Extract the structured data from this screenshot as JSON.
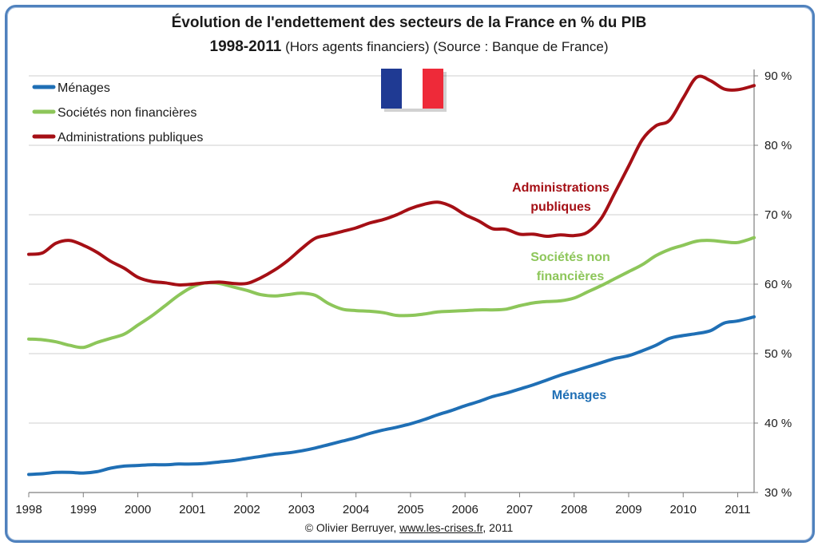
{
  "header": {
    "title": "Évolution de l'endettement des secteurs de la France  en % du PIB",
    "years": "1998-2011",
    "subtitle_rest": " (Hors agents financiers) (Source : Banque de France)"
  },
  "footer": {
    "copyright": "© Olivier Berruyer, ",
    "link": "www.les-crises.fr",
    "year": ",  2011"
  },
  "flag": {
    "colors": [
      "#1f3a93",
      "#ffffff",
      "#ee2a39"
    ]
  },
  "colors": {
    "grid": "#cfcfcf",
    "axis": "#7f7f7f",
    "frame": "#4f81bd"
  },
  "chart_data": {
    "type": "line",
    "title": "Évolution de l'endettement des secteurs de la France  en % du PIB",
    "xlim": [
      1998,
      2011.3
    ],
    "ylim": [
      30,
      90
    ],
    "x_ticks": [
      1998,
      1999,
      2000,
      2001,
      2002,
      2003,
      2004,
      2005,
      2006,
      2007,
      2008,
      2009,
      2010,
      2011
    ],
    "x_tick_labels": [
      "1998",
      "1999",
      "2000",
      "2001",
      "2002",
      "2003",
      "2004",
      "2005",
      "2006",
      "2007",
      "2008",
      "2009",
      "2010",
      "2011"
    ],
    "y_ticks": [
      30,
      40,
      50,
      60,
      70,
      80,
      90
    ],
    "y_tick_labels": [
      "30 %",
      "40 %",
      "50 %",
      "60 %",
      "70 %",
      "80 %",
      "90 %"
    ],
    "y_axis_side": "right",
    "grid": "horizontal",
    "legend_position": "top-left",
    "series": [
      {
        "name": "Ménages",
        "color": "#1f6fb5",
        "annotation": [
          "Ménages"
        ],
        "x": [
          1998,
          1998.25,
          1998.5,
          1998.75,
          1999,
          1999.25,
          1999.5,
          1999.75,
          2000,
          2000.25,
          2000.5,
          2000.75,
          2001,
          2001.25,
          2001.5,
          2001.75,
          2002,
          2002.25,
          2002.5,
          2002.75,
          2003,
          2003.25,
          2003.5,
          2003.75,
          2004,
          2004.25,
          2004.5,
          2004.75,
          2005,
          2005.25,
          2005.5,
          2005.75,
          2006,
          2006.25,
          2006.5,
          2006.75,
          2007,
          2007.25,
          2007.5,
          2007.75,
          2008,
          2008.25,
          2008.5,
          2008.75,
          2009,
          2009.25,
          2009.5,
          2009.75,
          2010,
          2010.25,
          2010.5,
          2010.75,
          2011,
          2011.3
        ],
        "values": [
          32.6,
          32.7,
          32.9,
          32.9,
          32.8,
          33.0,
          33.5,
          33.8,
          33.9,
          34.0,
          34.0,
          34.1,
          34.1,
          34.2,
          34.4,
          34.6,
          34.9,
          35.2,
          35.5,
          35.7,
          36.0,
          36.4,
          36.9,
          37.4,
          37.9,
          38.5,
          39.0,
          39.4,
          39.9,
          40.5,
          41.2,
          41.8,
          42.5,
          43.1,
          43.8,
          44.3,
          44.9,
          45.5,
          46.2,
          46.9,
          47.5,
          48.1,
          48.7,
          49.3,
          49.7,
          50.4,
          51.2,
          52.2,
          52.6,
          52.9,
          53.3,
          54.4,
          54.7,
          55.3
        ]
      },
      {
        "name": "Sociétés non financières",
        "color": "#8dc65a",
        "annotation": [
          "Sociétés non",
          "financières"
        ],
        "x": [
          1998,
          1998.25,
          1998.5,
          1998.75,
          1999,
          1999.25,
          1999.5,
          1999.75,
          2000,
          2000.25,
          2000.5,
          2000.75,
          2001,
          2001.25,
          2001.5,
          2001.75,
          2002,
          2002.25,
          2002.5,
          2002.75,
          2003,
          2003.25,
          2003.5,
          2003.75,
          2004,
          2004.25,
          2004.5,
          2004.75,
          2005,
          2005.25,
          2005.5,
          2005.75,
          2006,
          2006.25,
          2006.5,
          2006.75,
          2007,
          2007.25,
          2007.5,
          2007.75,
          2008,
          2008.25,
          2008.5,
          2008.75,
          2009,
          2009.25,
          2009.5,
          2009.75,
          2010,
          2010.25,
          2010.5,
          2010.75,
          2011,
          2011.3
        ],
        "values": [
          52.1,
          52.0,
          51.7,
          51.2,
          50.9,
          51.6,
          52.2,
          52.8,
          54.1,
          55.4,
          56.9,
          58.4,
          59.6,
          60.2,
          60.1,
          59.6,
          59.1,
          58.5,
          58.3,
          58.5,
          58.7,
          58.4,
          57.2,
          56.4,
          56.2,
          56.1,
          55.9,
          55.5,
          55.5,
          55.7,
          56.0,
          56.1,
          56.2,
          56.3,
          56.3,
          56.4,
          56.9,
          57.3,
          57.5,
          57.6,
          58.0,
          58.9,
          59.8,
          60.8,
          61.8,
          62.8,
          64.1,
          65.0,
          65.6,
          66.2,
          66.3,
          66.1,
          66.0,
          66.7
        ]
      },
      {
        "name": "Administrations publiques",
        "color": "#a50f15",
        "annotation": [
          "Administrations",
          "publiques"
        ],
        "x": [
          1998,
          1998.25,
          1998.5,
          1998.75,
          1999,
          1999.25,
          1999.5,
          1999.75,
          2000,
          2000.25,
          2000.5,
          2000.75,
          2001,
          2001.25,
          2001.5,
          2001.75,
          2002,
          2002.25,
          2002.5,
          2002.75,
          2003,
          2003.25,
          2003.5,
          2003.75,
          2004,
          2004.25,
          2004.5,
          2004.75,
          2005,
          2005.25,
          2005.5,
          2005.75,
          2006,
          2006.25,
          2006.5,
          2006.75,
          2007,
          2007.25,
          2007.5,
          2007.75,
          2008,
          2008.25,
          2008.5,
          2008.75,
          2009,
          2009.25,
          2009.5,
          2009.75,
          2010,
          2010.25,
          2010.5,
          2010.75,
          2011,
          2011.3
        ],
        "values": [
          64.3,
          64.5,
          65.9,
          66.3,
          65.6,
          64.6,
          63.3,
          62.3,
          61.0,
          60.4,
          60.2,
          59.9,
          60.0,
          60.2,
          60.3,
          60.1,
          60.1,
          60.9,
          62.0,
          63.4,
          65.1,
          66.6,
          67.1,
          67.6,
          68.1,
          68.8,
          69.3,
          70.0,
          70.9,
          71.5,
          71.8,
          71.2,
          70.0,
          69.1,
          68.0,
          67.9,
          67.2,
          67.2,
          66.9,
          67.1,
          67.0,
          67.5,
          69.5,
          73.2,
          77.0,
          80.8,
          82.8,
          83.6,
          86.8,
          89.8,
          89.3,
          88.1,
          88.0,
          88.6
        ]
      }
    ]
  }
}
